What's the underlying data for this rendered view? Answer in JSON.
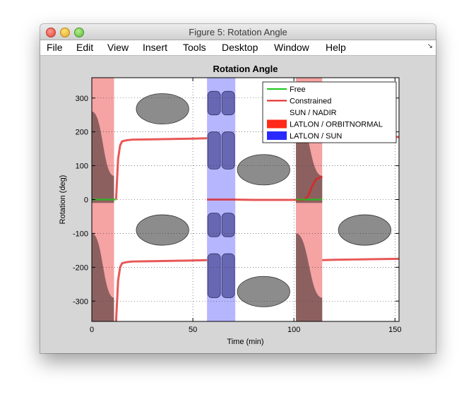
{
  "window": {
    "title": "Figure 5: Rotation Angle",
    "menus": [
      "File",
      "Edit",
      "View",
      "Insert",
      "Tools",
      "Desktop",
      "Window",
      "Help"
    ],
    "dock_icon": "dock-arrow-icon"
  },
  "chart_data": {
    "type": "line",
    "title": "Rotation Angle",
    "xlabel": "Time (min)",
    "ylabel": "Rotation (deg)",
    "xlim": [
      0,
      152
    ],
    "ylim": [
      -360,
      360
    ],
    "x_ticks": [
      0,
      50,
      100,
      150
    ],
    "y_ticks": [
      300,
      200,
      100,
      0,
      -100,
      -200,
      -300
    ],
    "grid": true,
    "legend_position": "top-right",
    "legend": [
      "Free",
      "Constrained",
      "SUN / NADIR",
      "LATLON / ORBITNORMAL",
      "LATLON / SUN"
    ],
    "colors": {
      "free": "#1ac81a",
      "constrained": "#e02020",
      "latlon_orbitnormal": "#ff2a1a",
      "latlon_sun": "#2a2aff",
      "region_orbitnormal_fill": "#f5a3a3",
      "region_sun_fill": "#b6b6ff",
      "ellipse_fill": "#8c8c8c"
    },
    "mode_regions": [
      {
        "mode": "LATLON / ORBITNORMAL",
        "x_start": 0,
        "x_end": 11
      },
      {
        "mode": "LATLON / SUN",
        "x_start": 57,
        "x_end": 71
      },
      {
        "mode": "LATLON / ORBITNORMAL",
        "x_start": 101,
        "x_end": 114
      }
    ],
    "series": [
      {
        "name": "Constrained",
        "segments": [
          {
            "x": [
              12,
              13,
              14,
              15,
              17,
              20,
              30,
              40,
              50,
              57
            ],
            "y": [
              0,
              120,
              160,
              172,
              175,
              177,
              178,
              179,
              180,
              181
            ]
          },
          {
            "x": [
              12,
              13,
              14,
              15,
              17,
              20,
              30,
              40,
              50,
              57
            ],
            "y": [
              -360,
              -240,
              -200,
              -188,
              -185,
              -183,
              -182,
              -181,
              -180,
              -179
            ]
          },
          {
            "x": [
              57,
              70,
              80,
              90,
              100,
              105,
              107,
              109,
              111,
              114
            ],
            "y": [
              0,
              0,
              -1,
              -1,
              -1,
              -1,
              10,
              40,
              60,
              68
            ]
          },
          {
            "x": [
              114,
              120,
              130,
              140,
              152
            ],
            "y": [
              -179,
              -178,
              -177,
              -176,
              -175
            ]
          },
          {
            "x": [
              114,
              120,
              130,
              140,
              152
            ],
            "y": [
              181,
              182,
              183,
              184,
              185
            ]
          }
        ]
      },
      {
        "name": "Free",
        "segments": [
          {
            "x": [
              0,
              12
            ],
            "y": [
              0,
              0
            ]
          },
          {
            "x": [
              101,
              114
            ],
            "y": [
              0,
              0
            ]
          }
        ]
      }
    ],
    "ellipses": [
      {
        "cx": 35,
        "cy": 268,
        "rx": 13,
        "ry": 45
      },
      {
        "cx": 35,
        "cy": -90,
        "rx": 13,
        "ry": 45
      },
      {
        "cx": 85,
        "cy": 88,
        "rx": 13,
        "ry": 45
      },
      {
        "cx": 85,
        "cy": -272,
        "rx": 13,
        "ry": 45
      },
      {
        "cx": 135,
        "cy": -90,
        "rx": 13,
        "ry": 45
      }
    ]
  }
}
